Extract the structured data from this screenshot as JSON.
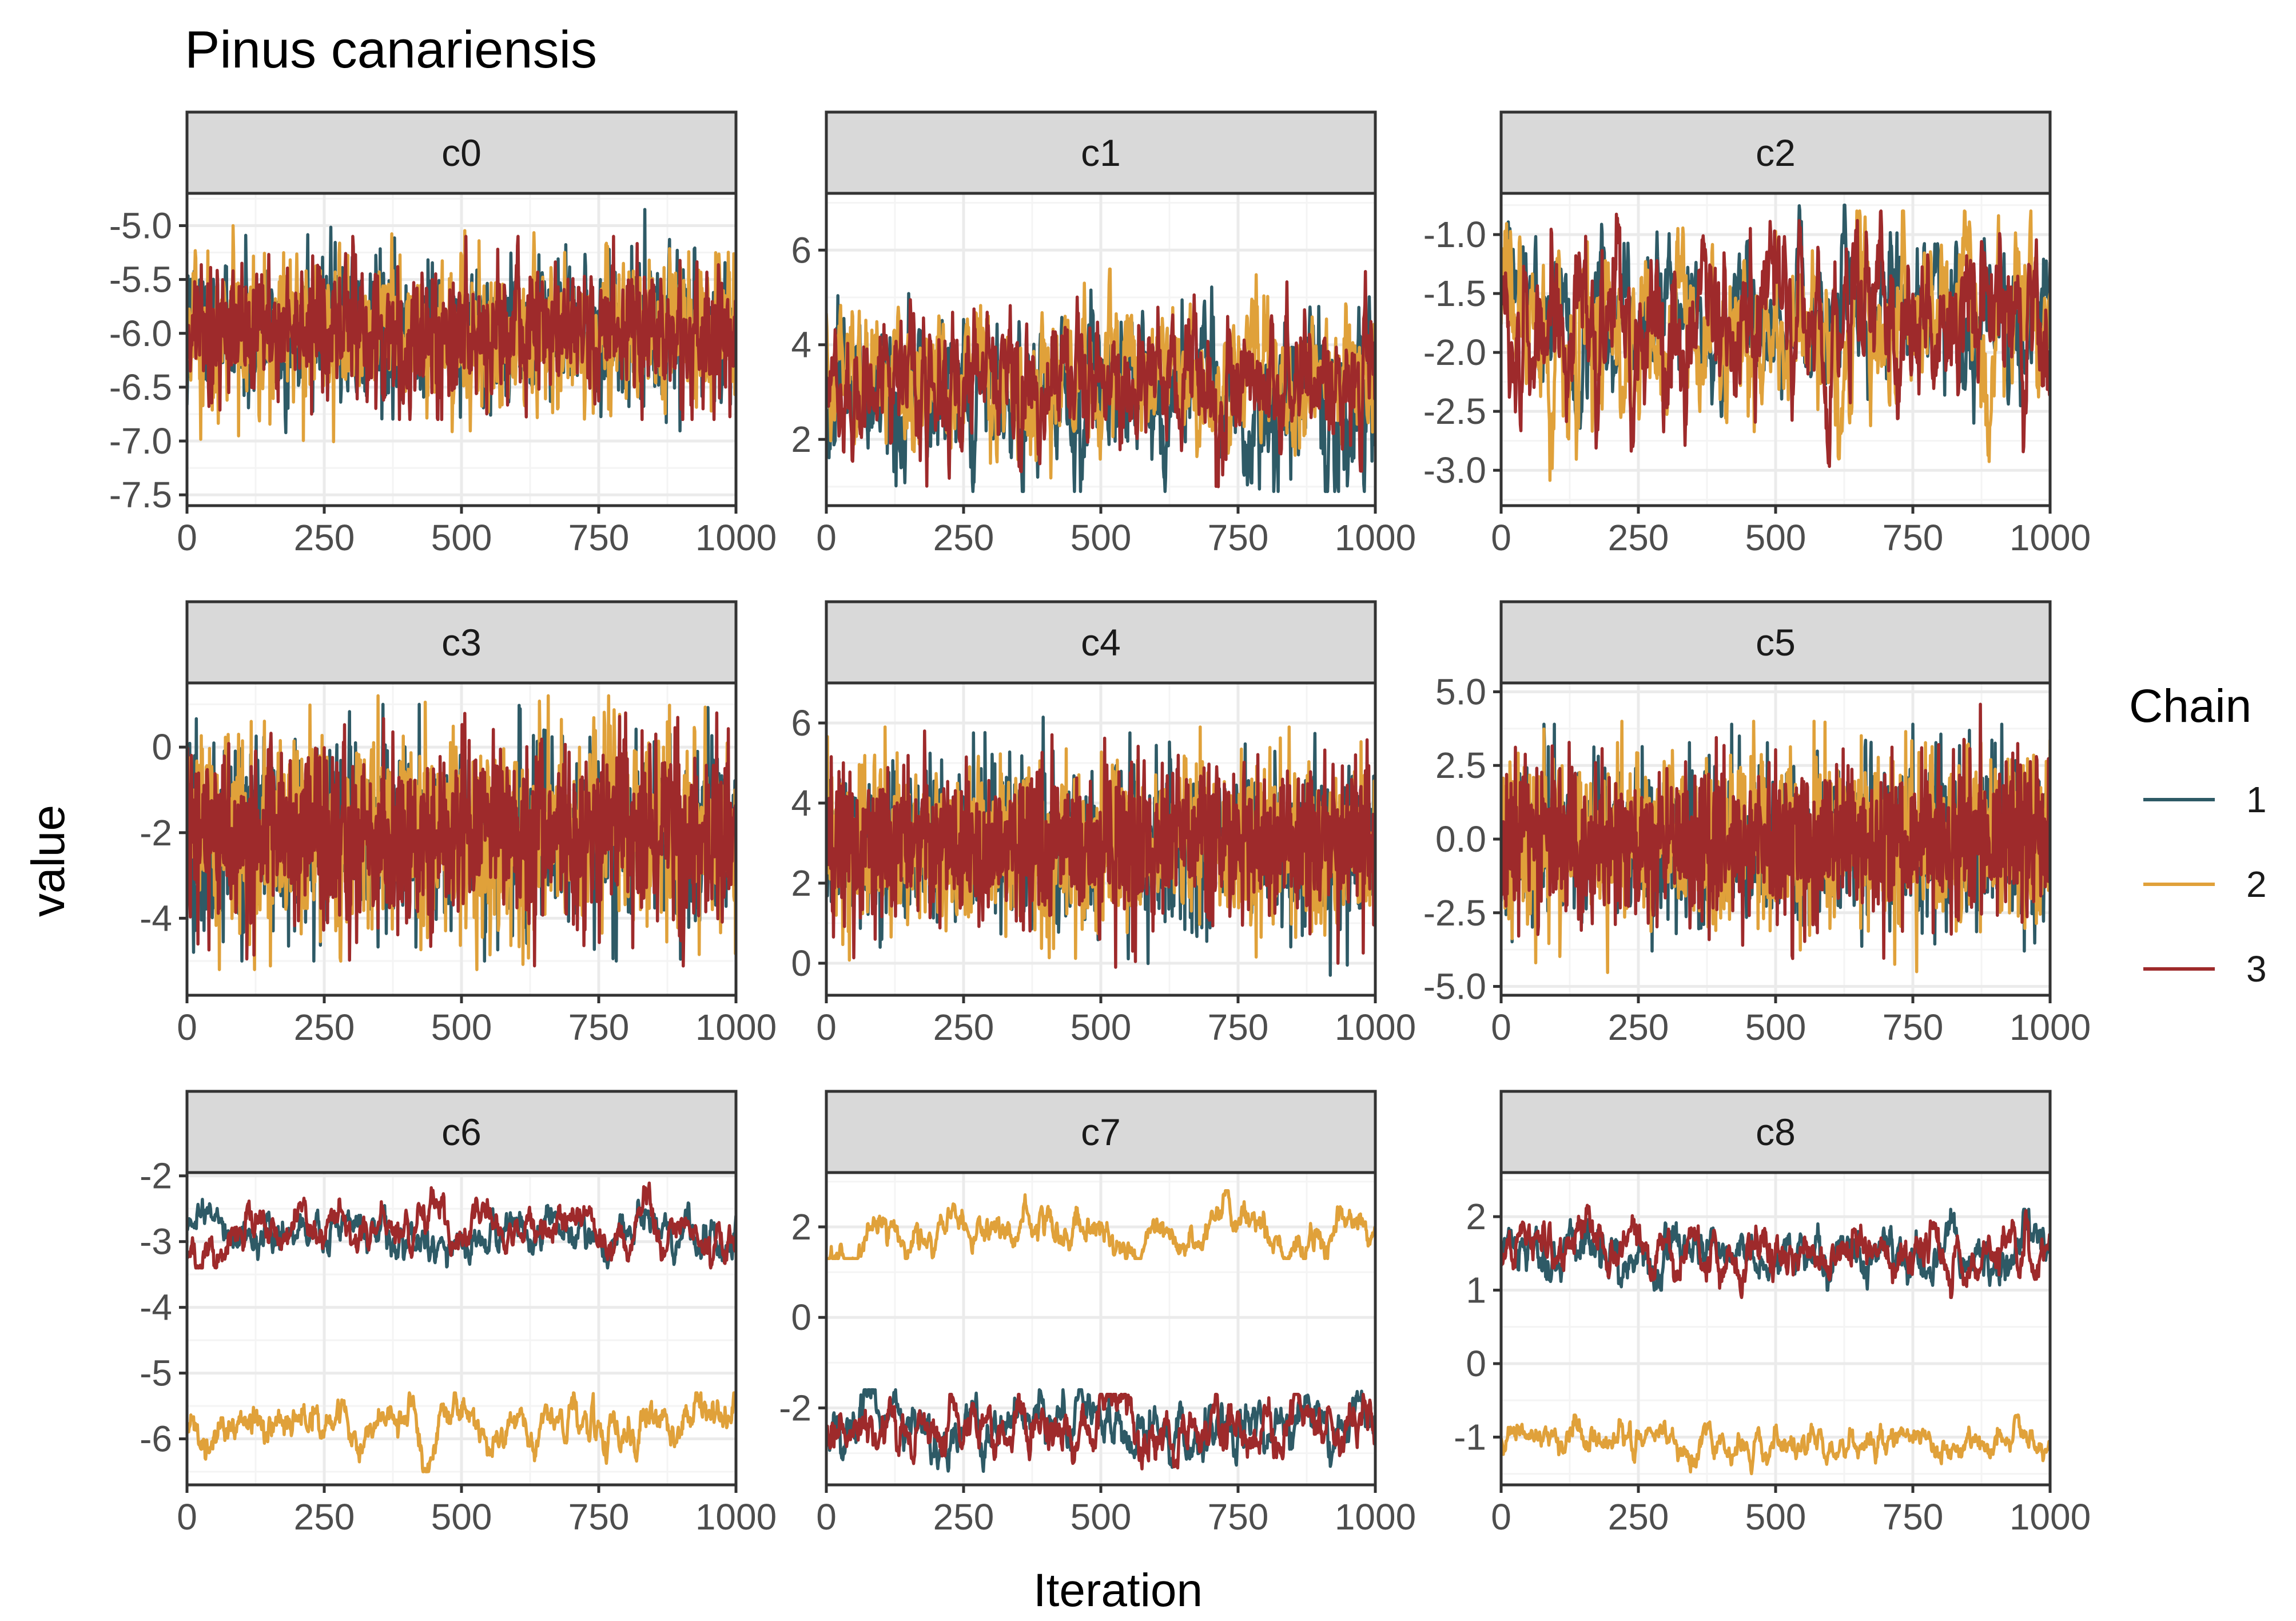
{
  "title": "Pinus canariensis",
  "xlabel": "Iteration",
  "ylabel": "value",
  "legend": {
    "title": "Chain",
    "entries": [
      {
        "label": "1",
        "color": "#2e5a66"
      },
      {
        "label": "2",
        "color": "#e0a13a"
      },
      {
        "label": "3",
        "color": "#9e2a2b"
      }
    ]
  },
  "chart_data": [
    {
      "type": "line",
      "panel": "c0",
      "xlim": [
        0,
        1000
      ],
      "ylim": [
        -7.6,
        -4.7
      ],
      "xticks": [
        0,
        250,
        500,
        750,
        1000
      ],
      "xtick_labels": [
        "0",
        "250",
        "500",
        "750",
        "1000"
      ],
      "yticks": [
        -7.5,
        -7.0,
        -6.5,
        -6.0,
        -5.5,
        -5.0
      ],
      "ytick_labels": [
        "-7.5",
        "-7.0",
        "-6.5",
        "-6.0",
        "-5.5",
        "-5.0"
      ],
      "series": [
        {
          "chain": "1",
          "mean": -6.0,
          "sd": 0.33,
          "rho": 0.3,
          "min": -7.1,
          "max": -4.85
        },
        {
          "chain": "2",
          "mean": -6.0,
          "sd": 0.34,
          "rho": 0.3,
          "min": -7.45,
          "max": -5.0
        },
        {
          "chain": "3",
          "mean": -6.0,
          "sd": 0.3,
          "rho": 0.3,
          "min": -6.8,
          "max": -5.1
        }
      ]
    },
    {
      "type": "line",
      "panel": "c1",
      "xlim": [
        0,
        1000
      ],
      "ylim": [
        0.6,
        7.2
      ],
      "xticks": [
        0,
        250,
        500,
        750,
        1000
      ],
      "xtick_labels": [
        "0",
        "250",
        "500",
        "750",
        "1000"
      ],
      "yticks": [
        2,
        4,
        6
      ],
      "ytick_labels": [
        "2",
        "4",
        "6"
      ],
      "series": [
        {
          "chain": "1",
          "mean": 3.0,
          "sd": 0.85,
          "rho": 0.7,
          "min": 0.9,
          "max": 5.3
        },
        {
          "chain": "2",
          "mean": 3.3,
          "sd": 0.75,
          "rho": 0.7,
          "min": 0.8,
          "max": 5.6
        },
        {
          "chain": "3",
          "mean": 3.3,
          "sd": 0.7,
          "rho": 0.7,
          "min": 1.0,
          "max": 6.8
        }
      ]
    },
    {
      "type": "line",
      "panel": "c2",
      "xlim": [
        0,
        1000
      ],
      "ylim": [
        -3.3,
        -0.65
      ],
      "xticks": [
        0,
        250,
        500,
        750,
        1000
      ],
      "xtick_labels": [
        "0",
        "250",
        "500",
        "750",
        "1000"
      ],
      "yticks": [
        -3.0,
        -2.5,
        -2.0,
        -1.5,
        -1.0
      ],
      "ytick_labels": [
        "-3.0",
        "-2.5",
        "-2.0",
        "-1.5",
        "-1.0"
      ],
      "series": [
        {
          "chain": "1",
          "mean": -1.7,
          "sd": 0.32,
          "rho": 0.8,
          "min": -2.7,
          "max": -0.75
        },
        {
          "chain": "2",
          "mean": -1.8,
          "sd": 0.4,
          "rho": 0.8,
          "min": -3.25,
          "max": -0.8
        },
        {
          "chain": "3",
          "mean": -1.75,
          "sd": 0.38,
          "rho": 0.8,
          "min": -3.1,
          "max": -0.8
        }
      ]
    },
    {
      "type": "line",
      "panel": "c3",
      "xlim": [
        0,
        1000
      ],
      "ylim": [
        -5.8,
        1.5
      ],
      "xticks": [
        0,
        250,
        500,
        750,
        1000
      ],
      "xtick_labels": [
        "0",
        "250",
        "500",
        "750",
        "1000"
      ],
      "yticks": [
        -4,
        -2,
        0
      ],
      "ytick_labels": [
        "-4",
        "-2",
        "0"
      ],
      "series": [
        {
          "chain": "1",
          "mean": -2.0,
          "sd": 1.1,
          "rho": 0.0,
          "min": -5.0,
          "max": 1.0
        },
        {
          "chain": "2",
          "mean": -2.0,
          "sd": 1.15,
          "rho": 0.0,
          "min": -5.2,
          "max": 1.2
        },
        {
          "chain": "3",
          "mean": -2.0,
          "sd": 1.0,
          "rho": 0.0,
          "min": -5.6,
          "max": 0.8
        }
      ]
    },
    {
      "type": "line",
      "panel": "c4",
      "xlim": [
        0,
        1000
      ],
      "ylim": [
        -0.8,
        7.0
      ],
      "xticks": [
        0,
        250,
        500,
        750,
        1000
      ],
      "xtick_labels": [
        "0",
        "250",
        "500",
        "750",
        "1000"
      ],
      "yticks": [
        0,
        2,
        4,
        6
      ],
      "ytick_labels": [
        "0",
        "2",
        "4",
        "6"
      ],
      "series": [
        {
          "chain": "1",
          "mean": 3.0,
          "sd": 1.0,
          "rho": 0.0,
          "min": -0.3,
          "max": 6.5
        },
        {
          "chain": "2",
          "mean": 3.0,
          "sd": 1.05,
          "rho": 0.0,
          "min": -0.6,
          "max": 5.9
        },
        {
          "chain": "3",
          "mean": 3.0,
          "sd": 0.95,
          "rho": 0.0,
          "min": -0.1,
          "max": 5.8
        }
      ]
    },
    {
      "type": "line",
      "panel": "c5",
      "xlim": [
        0,
        1000
      ],
      "ylim": [
        -5.3,
        5.3
      ],
      "xticks": [
        0,
        250,
        500,
        750,
        1000
      ],
      "xtick_labels": [
        "0",
        "250",
        "500",
        "750",
        "1000"
      ],
      "yticks": [
        -5.0,
        -2.5,
        0.0,
        2.5,
        5.0
      ],
      "ytick_labels": [
        "-5.0",
        "-2.5",
        "0.0",
        "2.5",
        "5.0"
      ],
      "series": [
        {
          "chain": "1",
          "mean": 0.0,
          "sd": 1.4,
          "rho": 0.0,
          "min": -3.8,
          "max": 3.9
        },
        {
          "chain": "2",
          "mean": 0.0,
          "sd": 1.5,
          "rho": 0.0,
          "min": -5.0,
          "max": 4.0
        },
        {
          "chain": "3",
          "mean": 0.0,
          "sd": 1.35,
          "rho": 0.0,
          "min": -5.0,
          "max": 4.8
        }
      ]
    },
    {
      "type": "line",
      "panel": "c6",
      "xlim": [
        0,
        1000
      ],
      "ylim": [
        -6.7,
        -1.95
      ],
      "xticks": [
        0,
        250,
        500,
        750,
        1000
      ],
      "xtick_labels": [
        "0",
        "250",
        "500",
        "750",
        "1000"
      ],
      "yticks": [
        -6,
        -5,
        -4,
        -3,
        -2
      ],
      "ytick_labels": [
        "-6",
        "-5",
        "-4",
        "-3",
        "-2"
      ],
      "series": [
        {
          "chain": "1",
          "mean": -2.85,
          "sd": 0.2,
          "rho": 0.9,
          "min": -3.4,
          "max": -2.35
        },
        {
          "chain": "2",
          "mean": -5.85,
          "sd": 0.22,
          "rho": 0.92,
          "min": -6.5,
          "max": -5.3
        },
        {
          "chain": "3",
          "mean": -2.9,
          "sd": 0.22,
          "rho": 0.92,
          "min": -3.4,
          "max": -2.05
        }
      ]
    },
    {
      "type": "line",
      "panel": "c7",
      "xlim": [
        0,
        1000
      ],
      "ylim": [
        -3.7,
        3.2
      ],
      "xticks": [
        0,
        250,
        500,
        750,
        1000
      ],
      "xtick_labels": [
        "0",
        "250",
        "500",
        "750",
        "1000"
      ],
      "yticks": [
        -2,
        0,
        2
      ],
      "ytick_labels": [
        "-2",
        "0",
        "2"
      ],
      "series": [
        {
          "chain": "1",
          "mean": -2.3,
          "sd": 0.35,
          "rho": 0.88,
          "min": -3.4,
          "max": -1.6
        },
        {
          "chain": "2",
          "mean": 2.0,
          "sd": 0.35,
          "rho": 0.95,
          "min": 1.3,
          "max": 2.8
        },
        {
          "chain": "3",
          "mean": -2.4,
          "sd": 0.35,
          "rho": 0.88,
          "min": -3.4,
          "max": -1.7
        }
      ]
    },
    {
      "type": "line",
      "panel": "c8",
      "xlim": [
        0,
        1000
      ],
      "ylim": [
        -1.65,
        2.6
      ],
      "xticks": [
        0,
        250,
        500,
        750,
        1000
      ],
      "xtick_labels": [
        "0",
        "250",
        "500",
        "750",
        "1000"
      ],
      "yticks": [
        -1,
        0,
        1,
        2
      ],
      "ytick_labels": [
        "-1",
        "0",
        "1",
        "2"
      ],
      "series": [
        {
          "chain": "1",
          "mean": 1.5,
          "sd": 0.2,
          "rho": 0.88,
          "min": 1.0,
          "max": 2.1
        },
        {
          "chain": "2",
          "mean": -1.1,
          "sd": 0.15,
          "rho": 0.92,
          "min": -1.5,
          "max": -0.7
        },
        {
          "chain": "3",
          "mean": 1.5,
          "sd": 0.22,
          "rho": 0.9,
          "min": 0.9,
          "max": 2.4
        }
      ]
    }
  ]
}
